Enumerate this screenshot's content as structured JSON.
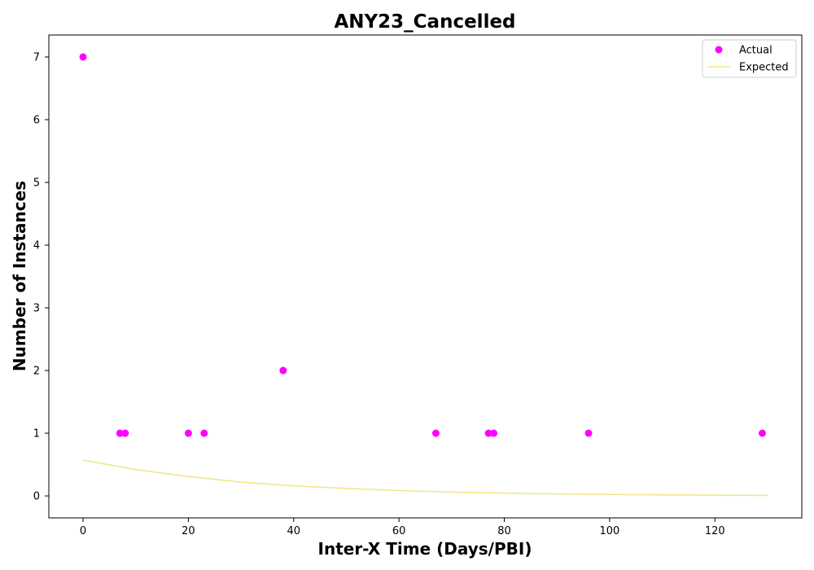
{
  "chart_data": {
    "type": "scatter",
    "title": "ANY23_Cancelled",
    "xlabel": "Inter-X Time (Days/PBI)",
    "ylabel": "Number of Instances",
    "xlim": [
      -6.5,
      136.5
    ],
    "ylim": [
      -0.35,
      7.35
    ],
    "xticks": [
      0,
      20,
      40,
      60,
      80,
      100,
      120
    ],
    "yticks": [
      0,
      1,
      2,
      3,
      4,
      5,
      6,
      7
    ],
    "grid": false,
    "legend_position": "top-right",
    "series": [
      {
        "name": "Actual",
        "kind": "scatter",
        "color": "#ff00ff",
        "x": [
          0,
          7,
          8,
          20,
          23,
          38,
          67,
          77,
          78,
          96,
          129
        ],
        "y": [
          7,
          1,
          1,
          1,
          1,
          2,
          1,
          1,
          1,
          1,
          1
        ]
      },
      {
        "name": "Expected",
        "kind": "line",
        "color": "#f0e68c",
        "x": [
          0,
          10,
          20,
          30,
          40,
          50,
          60,
          70,
          80,
          90,
          100,
          110,
          120,
          130
        ],
        "y": [
          0.57,
          0.42,
          0.31,
          0.22,
          0.16,
          0.12,
          0.085,
          0.062,
          0.045,
          0.033,
          0.024,
          0.017,
          0.012,
          0.009
        ]
      }
    ]
  }
}
